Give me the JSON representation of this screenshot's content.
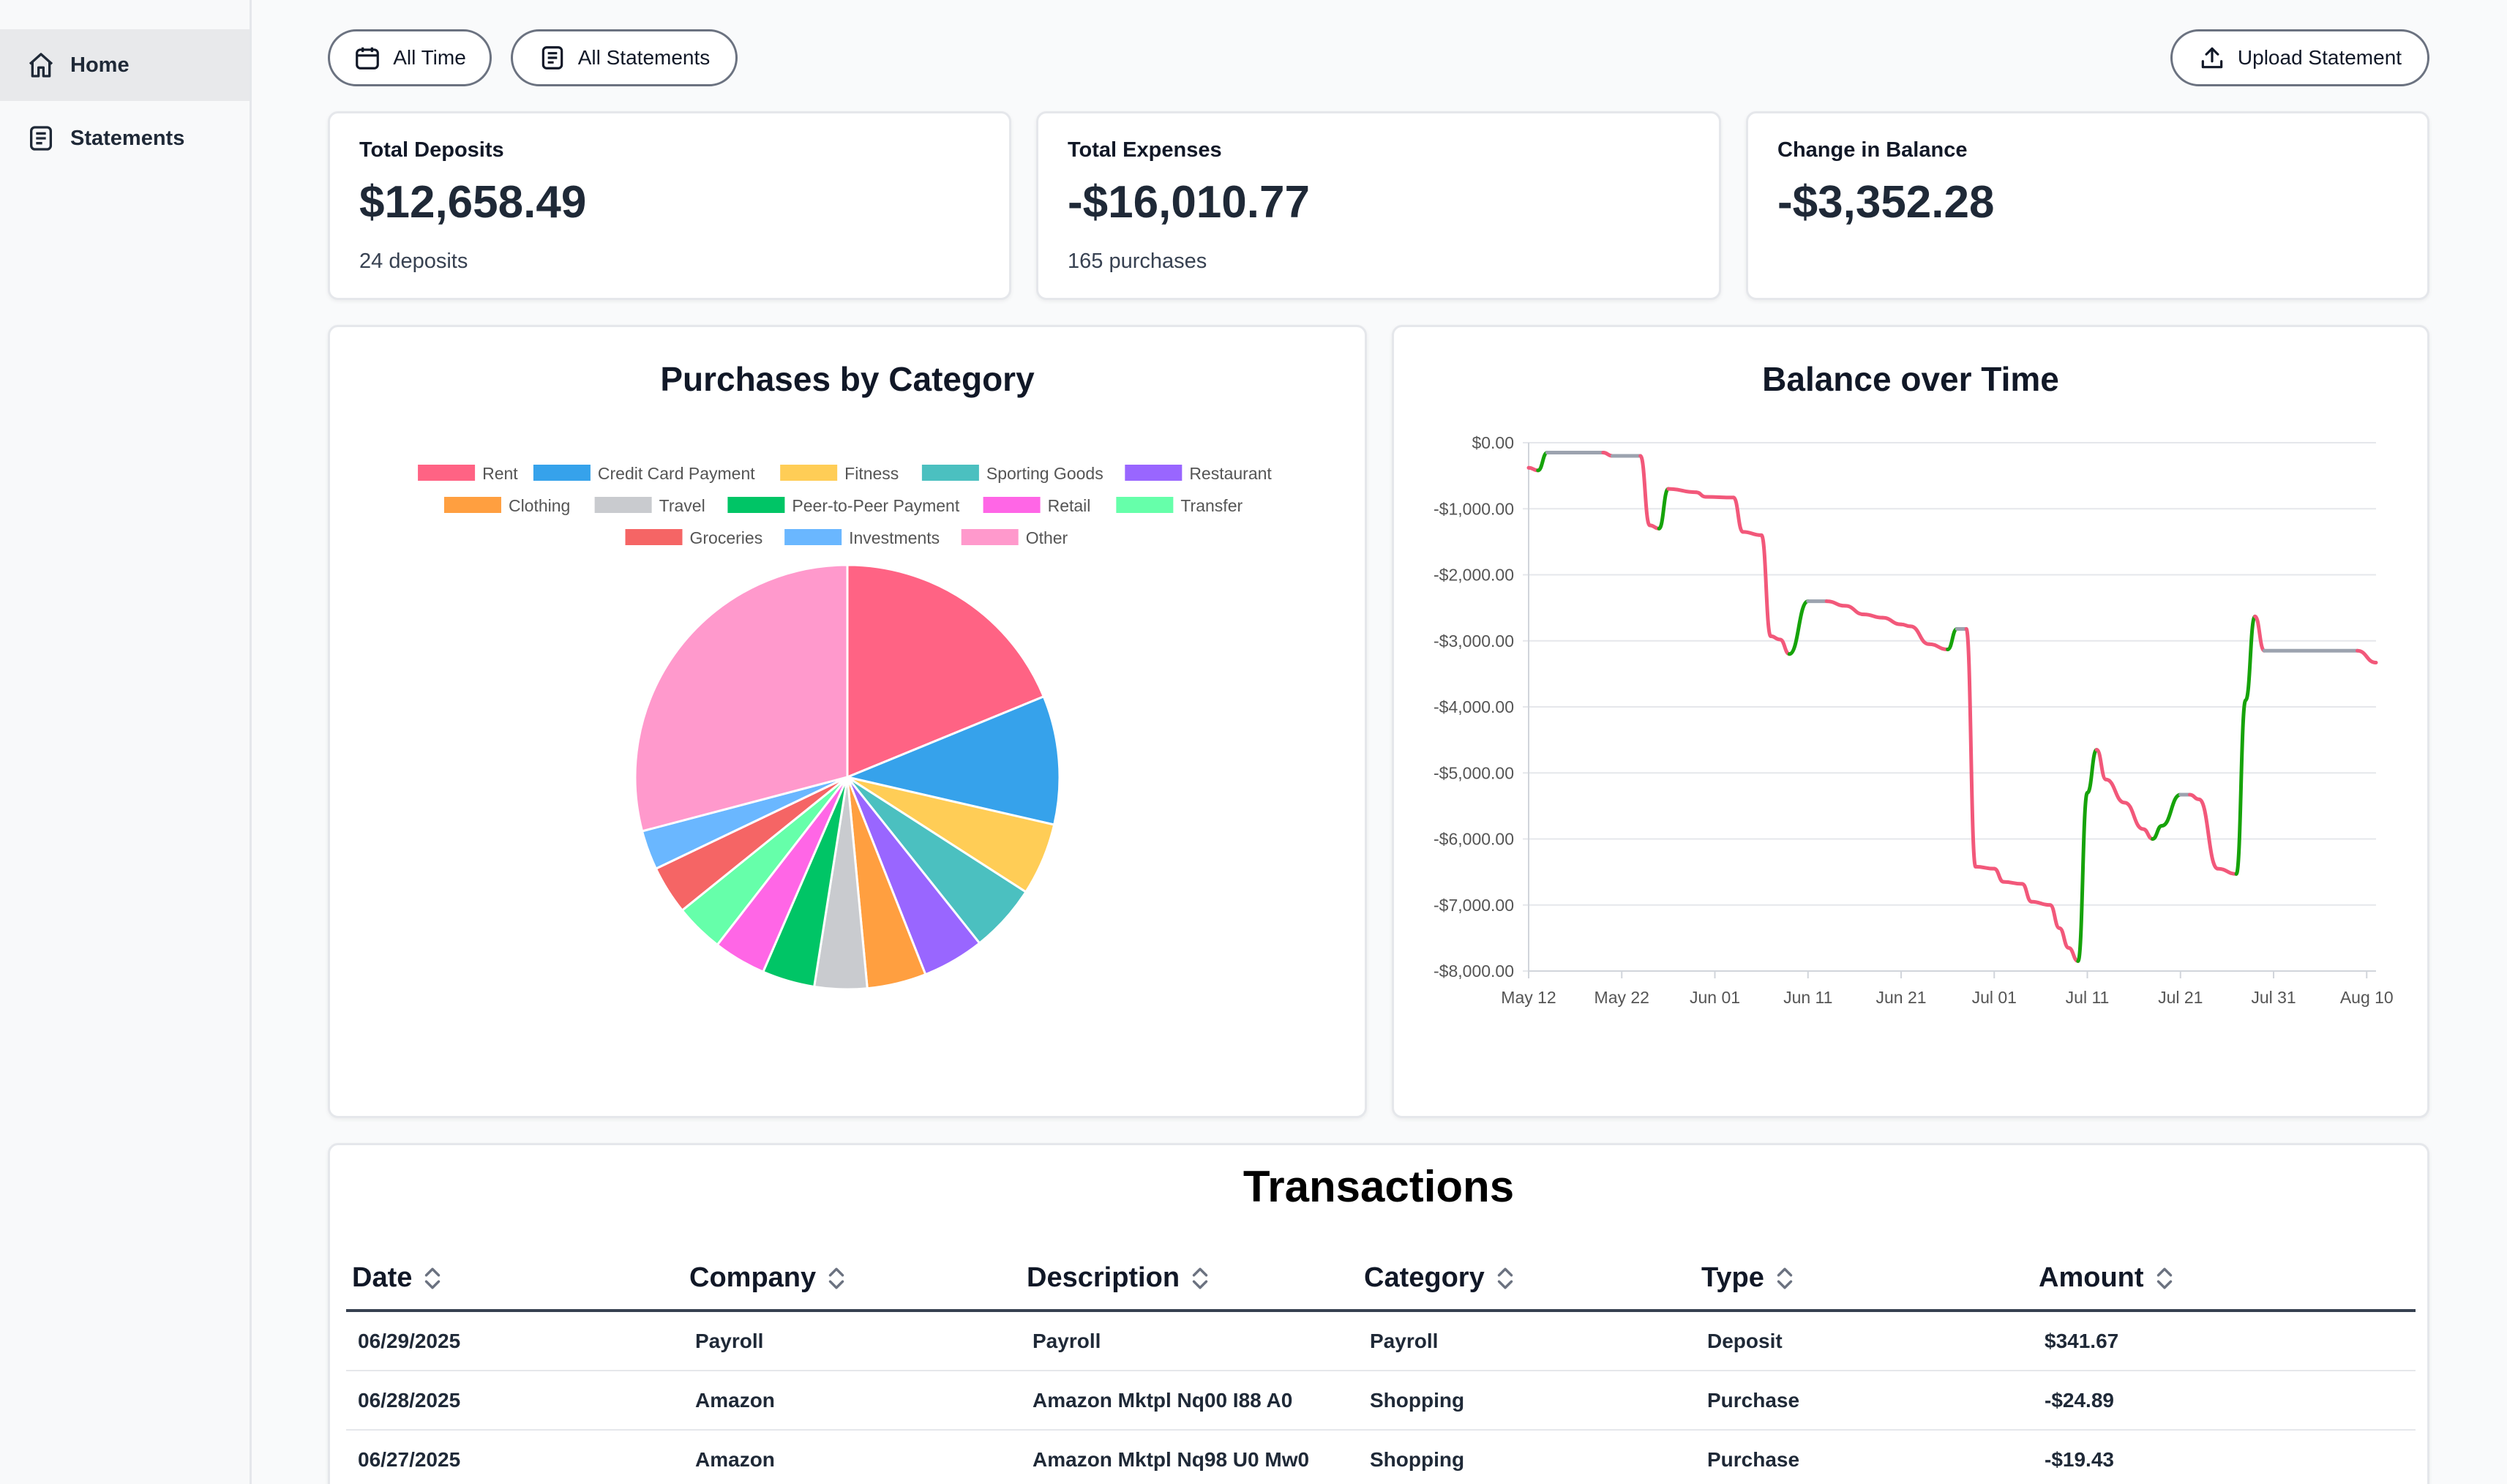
{
  "sidebar": {
    "items": [
      {
        "label": "Home",
        "icon": "home-icon",
        "active": true
      },
      {
        "label": "Statements",
        "icon": "document-icon",
        "active": false
      }
    ]
  },
  "toolbar": {
    "time_filter_label": "All Time",
    "statement_filter_label": "All Statements",
    "upload_label": "Upload Statement"
  },
  "stats": {
    "deposits": {
      "label": "Total Deposits",
      "value": "$12,658.49",
      "sub": "24 deposits"
    },
    "expenses": {
      "label": "Total Expenses",
      "value": "-$16,010.77",
      "sub": "165 purchases"
    },
    "balance": {
      "label": "Change in Balance",
      "value": "-$3,352.28"
    }
  },
  "chart_data": [
    {
      "type": "pie",
      "title": "Purchases by Category",
      "legend_placement": "top",
      "categories": [
        "Rent",
        "Credit Card Payment",
        "Fitness",
        "Sporting Goods",
        "Restaurant",
        "Clothing",
        "Travel",
        "Peer-to-Peer Payment",
        "Retail",
        "Transfer",
        "Groceries",
        "Investments",
        "Other"
      ],
      "values": [
        18.8,
        9.8,
        5.5,
        5.2,
        4.7,
        4.5,
        4.0,
        4.0,
        4.0,
        3.7,
        3.7,
        3.0,
        29.1
      ],
      "colors": [
        "#ff6384",
        "#36a2eb",
        "#ffcd56",
        "#4bc0c0",
        "#9966ff",
        "#ff9f40",
        "#c9cbcf",
        "#00c566",
        "#ff66e6",
        "#66ffaa",
        "#f56565",
        "#6ab7ff",
        "#ff99cc"
      ]
    },
    {
      "type": "line",
      "title": "Balance over Time",
      "x_ticks": [
        "May 12",
        "May 22",
        "Jun 01",
        "Jun 11",
        "Jun 21",
        "Jul 01",
        "Jul 11",
        "Jul 21",
        "Jul 31",
        "Aug 10"
      ],
      "y_ticks": [
        "$0.00",
        "-$1,000.00",
        "-$2,000.00",
        "-$3,000.00",
        "-$4,000.00",
        "-$5,000.00",
        "-$6,000.00",
        "-$7,000.00",
        "-$8,000.00"
      ],
      "ylim": [
        -8000,
        0
      ],
      "grid": true,
      "segment_colors": {
        "increase": "#16a30a",
        "decrease": "#f2587a",
        "flat": "#9ca3af"
      },
      "series": [
        {
          "points": [
            [
              "2025-05-12",
              -380
            ],
            [
              "2025-05-13",
              -420
            ],
            [
              "2025-05-14",
              -150
            ],
            [
              "2025-05-20",
              -150
            ],
            [
              "2025-05-21",
              -200
            ],
            [
              "2025-05-24",
              -200
            ],
            [
              "2025-05-25",
              -1250
            ],
            [
              "2025-05-26",
              -1300
            ],
            [
              "2025-05-27",
              -700
            ],
            [
              "2025-05-30",
              -750
            ],
            [
              "2025-05-31",
              -820
            ],
            [
              "2025-06-03",
              -830
            ],
            [
              "2025-06-04",
              -1350
            ],
            [
              "2025-06-06",
              -1400
            ],
            [
              "2025-06-07",
              -2930
            ],
            [
              "2025-06-08",
              -2980
            ],
            [
              "2025-06-09",
              -3200
            ],
            [
              "2025-06-11",
              -2400
            ],
            [
              "2025-06-13",
              -2400
            ],
            [
              "2025-06-15",
              -2470
            ],
            [
              "2025-06-17",
              -2600
            ],
            [
              "2025-06-19",
              -2650
            ],
            [
              "2025-06-21",
              -2750
            ],
            [
              "2025-06-22",
              -2780
            ],
            [
              "2025-06-24",
              -3050
            ],
            [
              "2025-06-26",
              -3130
            ],
            [
              "2025-06-27",
              -2820
            ],
            [
              "2025-06-28",
              -2820
            ],
            [
              "2025-06-29",
              -6420
            ],
            [
              "2025-07-01",
              -6450
            ],
            [
              "2025-07-02",
              -6650
            ],
            [
              "2025-07-04",
              -6680
            ],
            [
              "2025-07-05",
              -6950
            ],
            [
              "2025-07-07",
              -7000
            ],
            [
              "2025-07-08",
              -7350
            ],
            [
              "2025-07-09",
              -7650
            ],
            [
              "2025-07-10",
              -7850
            ],
            [
              "2025-07-11",
              -5300
            ],
            [
              "2025-07-12",
              -4650
            ],
            [
              "2025-07-13",
              -5100
            ],
            [
              "2025-07-15",
              -5450
            ],
            [
              "2025-07-17",
              -5850
            ],
            [
              "2025-07-18",
              -6000
            ],
            [
              "2025-07-19",
              -5800
            ],
            [
              "2025-07-21",
              -5330
            ],
            [
              "2025-07-22",
              -5330
            ],
            [
              "2025-07-23",
              -5400
            ],
            [
              "2025-07-25",
              -6450
            ],
            [
              "2025-07-27",
              -6530
            ],
            [
              "2025-07-28",
              -3900
            ],
            [
              "2025-07-29",
              -2630
            ],
            [
              "2025-07-30",
              -3150
            ],
            [
              "2025-08-09",
              -3150
            ],
            [
              "2025-08-11",
              -3330
            ]
          ]
        }
      ]
    }
  ],
  "transactions": {
    "title": "Transactions",
    "columns": [
      "Date",
      "Company",
      "Description",
      "Category",
      "Type",
      "Amount"
    ],
    "rows": [
      [
        "06/29/2025",
        "Payroll",
        "Payroll",
        "Payroll",
        "Deposit",
        "$341.67"
      ],
      [
        "06/28/2025",
        "Amazon",
        "Amazon Mktpl Nq00 I88 A0",
        "Shopping",
        "Purchase",
        "-$24.89"
      ],
      [
        "06/27/2025",
        "Amazon",
        "Amazon Mktpl Nq98 U0 Mw0",
        "Shopping",
        "Purchase",
        "-$19.43"
      ]
    ]
  }
}
